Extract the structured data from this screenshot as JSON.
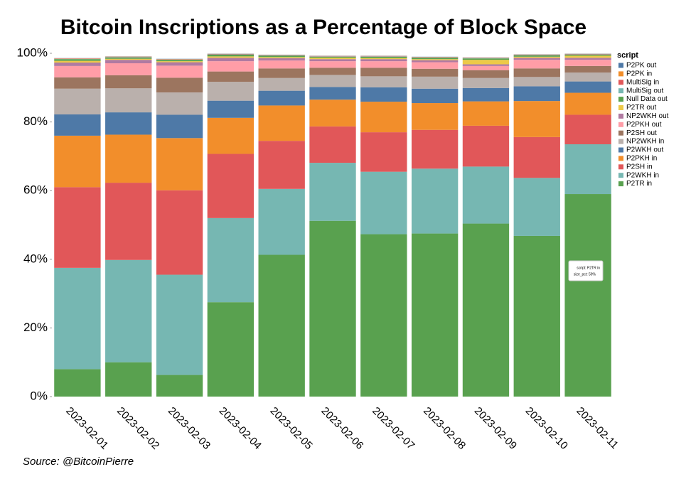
{
  "chart_data": {
    "type": "stacked_bar",
    "title": "Bitcoin Inscriptions as a Percentage of Block Space",
    "source": "Source: @BitcoinPierre",
    "legend_title": "script",
    "legend_position": "right",
    "grid": false,
    "categories": [
      "2023-02-01",
      "2023-02-02",
      "2023-02-03",
      "2023-02-04",
      "2023-02-05",
      "2023-02-06",
      "2023-02-07",
      "2023-02-08",
      "2023-02-09",
      "2023-02-10",
      "2023-02-11"
    ],
    "ylim": [
      0,
      100
    ],
    "yticks": [
      {
        "value": 0,
        "label": "0%"
      },
      {
        "value": 20,
        "label": "20%"
      },
      {
        "value": 40,
        "label": "40%"
      },
      {
        "value": 60,
        "label": "60%"
      },
      {
        "value": 80,
        "label": "80%"
      },
      {
        "value": 100,
        "label": "100%"
      }
    ],
    "series": [
      {
        "name": "P2PK out",
        "color": "#4e79a7",
        "values": [
          0.05,
          0.05,
          0.05,
          0.05,
          0.05,
          0.05,
          0.05,
          0.05,
          0.05,
          0.05,
          0.05
        ]
      },
      {
        "name": "P2PK in",
        "color": "#f28e2b",
        "values": [
          0.05,
          0.05,
          0.05,
          0.05,
          0.05,
          0.05,
          0.05,
          0.05,
          0.05,
          0.05,
          0.05
        ]
      },
      {
        "name": "MultiSig in",
        "color": "#e15759",
        "values": [
          0.1,
          0.1,
          0.1,
          0.1,
          0.1,
          0.1,
          0.1,
          0.1,
          0.1,
          0.1,
          0.1
        ]
      },
      {
        "name": "MultiSig out",
        "color": "#76b7b2",
        "values": [
          0.1,
          0.1,
          0.1,
          0.1,
          0.1,
          0.1,
          0.1,
          0.1,
          0.1,
          0.1,
          0.1
        ]
      },
      {
        "name": "Null Data out",
        "color": "#59a14f",
        "values": [
          0.5,
          0.4,
          0.4,
          0.5,
          0.4,
          0.3,
          0.4,
          0.4,
          0.4,
          0.4,
          0.3
        ]
      },
      {
        "name": "P2TR out",
        "color": "#edc948",
        "values": [
          0.5,
          0.3,
          0.3,
          0.4,
          0.3,
          0.4,
          0.3,
          0.3,
          1.3,
          0.3,
          0.6
        ]
      },
      {
        "name": "NP2WKH out",
        "color": "#b07aa1",
        "values": [
          1,
          1,
          1,
          1,
          0.7,
          0.6,
          0.6,
          0.6,
          0.5,
          0.6,
          0.6
        ]
      },
      {
        "name": "P2PKH out",
        "color": "#ff9da7",
        "values": [
          3.3,
          3.5,
          3.5,
          3,
          2.3,
          1.9,
          1.9,
          1.9,
          1.2,
          2.5,
          1.8
        ]
      },
      {
        "name": "P2SH out",
        "color": "#9c755f",
        "values": [
          3.3,
          3.8,
          4.3,
          3,
          2.8,
          2.1,
          2.5,
          2.3,
          2.3,
          2.5,
          1.9
        ]
      },
      {
        "name": "NP2WKH in",
        "color": "#bab0ac",
        "values": [
          7.5,
          7,
          6.5,
          5.5,
          3.7,
          3.5,
          3.2,
          3.5,
          2.9,
          2.7,
          2.6
        ]
      },
      {
        "name": "P2WKH out",
        "color": "#4e79a7",
        "values": [
          6.2,
          6.5,
          6.8,
          5,
          4.3,
          3.7,
          4.2,
          4.2,
          3.9,
          4.3,
          3.3
        ]
      },
      {
        "name": "P2PKH in",
        "color": "#f28e2b",
        "values": [
          15,
          14,
          15.2,
          10.5,
          10.3,
          7.8,
          8.9,
          7.8,
          7.1,
          10.5,
          6.4
        ]
      },
      {
        "name": "P2SH in",
        "color": "#e15759",
        "values": [
          23.5,
          22.5,
          24.6,
          18.7,
          14,
          10.6,
          11.5,
          11.3,
          11.9,
          11.9,
          8.6
        ]
      },
      {
        "name": "P2WKH in",
        "color": "#76b7b2",
        "values": [
          29.5,
          29.8,
          29.2,
          24.5,
          19.2,
          16.9,
          18.2,
          18.9,
          16.6,
          16.9,
          14.5
        ]
      },
      {
        "name": "P2TR in",
        "color": "#59a14f",
        "values": [
          8,
          10,
          6.3,
          27.5,
          41.3,
          51.2,
          47.3,
          47.5,
          50.4,
          46.8,
          59
        ]
      }
    ],
    "tooltip": {
      "line1": "script: P2TR in",
      "line2": "size_pct: 59%"
    }
  }
}
